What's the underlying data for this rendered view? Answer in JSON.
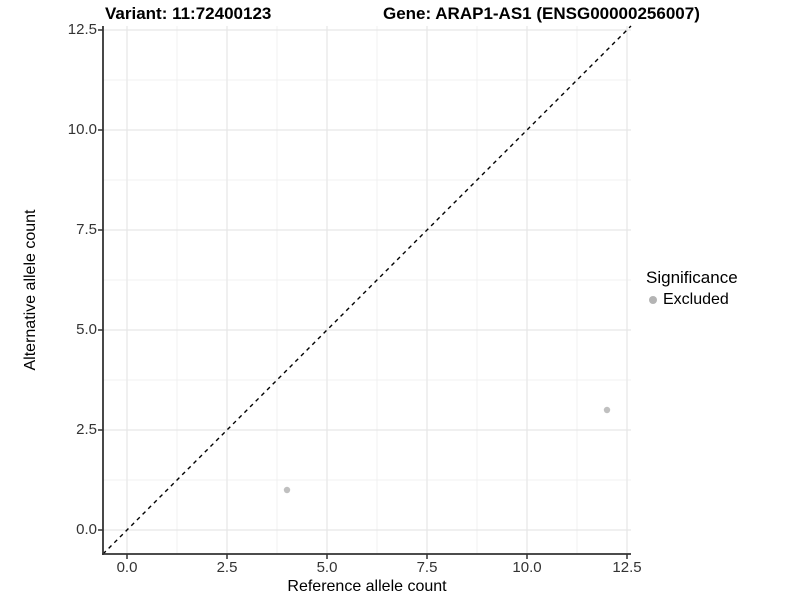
{
  "header": {
    "variant_title": "Variant: 11:72400123",
    "gene_title": "Gene: ARAP1-AS1 (ENSG00000256007)"
  },
  "legend": {
    "title": "Significance",
    "items": [
      {
        "label": "Excluded",
        "color": "#b4b4b4"
      }
    ]
  },
  "chart_data": {
    "type": "scatter",
    "title": "Variant: 11:72400123   Gene: ARAP1-AS1 (ENSG00000256007)",
    "xlabel": "Reference allele count",
    "ylabel": "Alternative allele count",
    "xlim": [
      -0.6,
      12.6
    ],
    "ylim": [
      -0.6,
      12.6
    ],
    "x_tick_values": [
      0,
      2.5,
      5,
      7.5,
      10,
      12.5
    ],
    "x_tick_labels": [
      "0.0",
      "2.5",
      "5.0",
      "7.5",
      "10.0",
      "12.5"
    ],
    "y_tick_values": [
      0,
      2.5,
      5,
      7.5,
      10,
      12.5
    ],
    "y_tick_labels": [
      "0.0",
      "2.5",
      "5.0",
      "7.5",
      "10.0",
      "12.5"
    ],
    "minor_tick_values": [
      1.25,
      3.75,
      6.25,
      8.75,
      11.25
    ],
    "grid": true,
    "legend_position": "right",
    "reference_line": {
      "type": "abline",
      "slope": 1,
      "intercept": 0,
      "style": "dashed",
      "color": "#000000"
    },
    "series": [
      {
        "name": "Excluded",
        "color": "#c0c0c0",
        "points": [
          {
            "x": 4,
            "y": 1
          },
          {
            "x": 12,
            "y": 3
          }
        ]
      }
    ],
    "colors": {
      "major_grid": "#e7e7e7",
      "minor_grid": "#f1f1f1",
      "axis_line": "#333333",
      "tick_mark": "#333333",
      "tick_text": "#333333",
      "point_excluded": "#c0c0c0",
      "legend_dot": "#b4b4b4"
    }
  }
}
